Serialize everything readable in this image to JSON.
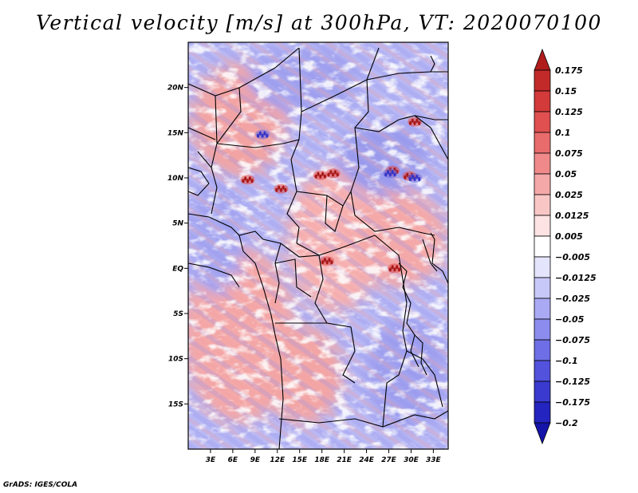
{
  "title": "Vertical velocity [m/s] at 300hPa, VT: 2020070100",
  "credit": "GrADS: IGES/COLA",
  "map": {
    "lon_range": [
      0,
      35
    ],
    "lat_range": [
      -20,
      25
    ],
    "lat_ticks": [
      {
        "value": 20,
        "label": "20N"
      },
      {
        "value": 15,
        "label": "15N"
      },
      {
        "value": 10,
        "label": "10N"
      },
      {
        "value": 5,
        "label": "5N"
      },
      {
        "value": 0,
        "label": "EQ"
      },
      {
        "value": -5,
        "label": "5S"
      },
      {
        "value": -10,
        "label": "10S"
      },
      {
        "value": -15,
        "label": "15S"
      }
    ],
    "lon_ticks": [
      {
        "value": 3,
        "label": "3E"
      },
      {
        "value": 6,
        "label": "6E"
      },
      {
        "value": 9,
        "label": "9E"
      },
      {
        "value": 12,
        "label": "12E"
      },
      {
        "value": 15,
        "label": "15E"
      },
      {
        "value": 18,
        "label": "18E"
      },
      {
        "value": 21,
        "label": "21E"
      },
      {
        "value": 24,
        "label": "24E"
      },
      {
        "value": 27,
        "label": "27E"
      },
      {
        "value": 30,
        "label": "30E"
      },
      {
        "value": 33,
        "label": "33E"
      }
    ],
    "field_name": "vertical velocity",
    "hotspots": [
      {
        "lon": 8.0,
        "lat": 9.8,
        "sign": 1
      },
      {
        "lon": 12.5,
        "lat": 8.8,
        "sign": 1
      },
      {
        "lon": 17.8,
        "lat": 10.3,
        "sign": 1
      },
      {
        "lon": 19.5,
        "lat": 10.5,
        "sign": 1
      },
      {
        "lon": 27.5,
        "lat": 10.8,
        "sign": 1
      },
      {
        "lon": 29.8,
        "lat": 10.2,
        "sign": 1
      },
      {
        "lon": 18.7,
        "lat": 0.8,
        "sign": 1
      },
      {
        "lon": 27.8,
        "lat": 0.0,
        "sign": 1
      },
      {
        "lon": 30.5,
        "lat": 16.2,
        "sign": 1
      },
      {
        "lon": 10.0,
        "lat": 14.8,
        "sign": -1
      },
      {
        "lon": 27.2,
        "lat": 10.5,
        "sign": -1
      },
      {
        "lon": 30.5,
        "lat": 10.0,
        "sign": -1
      }
    ]
  },
  "colorbar": {
    "levels": [
      "0.175",
      "0.15",
      "0.125",
      "0.1",
      "0.075",
      "0.05",
      "0.025",
      "0.0125",
      "0.005",
      "−0.005",
      "−0.0125",
      "−0.025",
      "−0.05",
      "−0.075",
      "−0.1",
      "−0.125",
      "−0.175",
      "−0.2"
    ],
    "colors": [
      "#b01c1c",
      "#c22a2a",
      "#d33a3a",
      "#e05050",
      "#e86c6c",
      "#f08a8a",
      "#f5a8a8",
      "#f9c6c6",
      "#fde3e3",
      "#ffffff",
      "#e4e4fc",
      "#c8c8f8",
      "#aaaaf4",
      "#8c8cee",
      "#6e6ee6",
      "#5252dc",
      "#3a3ad0",
      "#2424c0",
      "#1414a8"
    ]
  }
}
